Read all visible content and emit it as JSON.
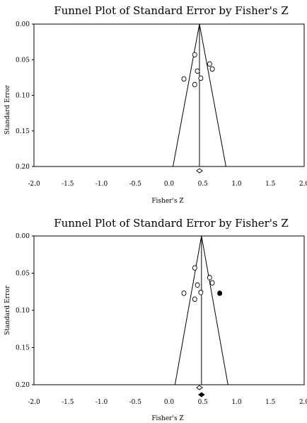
{
  "chart_data": [
    {
      "type": "scatter",
      "title": "Funnel Plot of Standard Error by Fisher's Z",
      "xlabel": "Fisher's Z",
      "ylabel": "Standard Error",
      "xlim": [
        -2.0,
        2.0
      ],
      "ylim": [
        0.0,
        0.2
      ],
      "y_inverted": true,
      "x_ticks": [
        "-2.0",
        "-1.5",
        "-1.0",
        "-0.5",
        "0.0",
        "0.5",
        "1.0",
        "1.5",
        "2.0"
      ],
      "y_ticks": [
        "0.00",
        "0.05",
        "0.10",
        "0.15",
        "0.20"
      ],
      "summary_effect": 0.45,
      "series": [
        {
          "marker": "open-circle",
          "points": [
            {
              "x": 0.38,
              "y": 0.043
            },
            {
              "x": 0.6,
              "y": 0.056
            },
            {
              "x": 0.64,
              "y": 0.063
            },
            {
              "x": 0.42,
              "y": 0.066
            },
            {
              "x": 0.22,
              "y": 0.077
            },
            {
              "x": 0.47,
              "y": 0.076
            },
            {
              "x": 0.38,
              "y": 0.085
            }
          ]
        }
      ],
      "summary_diamonds": [
        {
          "x": 0.45,
          "style": "open"
        }
      ]
    },
    {
      "type": "scatter",
      "title": "Funnel Plot of Standard Error by Fisher's Z",
      "xlabel": "Fisher's Z",
      "ylabel": "Standard Error",
      "xlim": [
        -2.0,
        2.0
      ],
      "ylim": [
        0.0,
        0.2
      ],
      "y_inverted": true,
      "x_ticks": [
        "-2.0",
        "-1.5",
        "-1.0",
        "-0.5",
        "0.0",
        "0.5",
        "1.0",
        "1.5",
        "2.0"
      ],
      "y_ticks": [
        "0.00",
        "0.05",
        "0.10",
        "0.15",
        "0.20"
      ],
      "summary_effect": 0.48,
      "series": [
        {
          "marker": "open-circle",
          "points": [
            {
              "x": 0.38,
              "y": 0.043
            },
            {
              "x": 0.6,
              "y": 0.056
            },
            {
              "x": 0.64,
              "y": 0.063
            },
            {
              "x": 0.42,
              "y": 0.066
            },
            {
              "x": 0.22,
              "y": 0.077
            },
            {
              "x": 0.47,
              "y": 0.076
            },
            {
              "x": 0.38,
              "y": 0.085
            }
          ]
        },
        {
          "marker": "filled-circle",
          "points": [
            {
              "x": 0.75,
              "y": 0.077
            }
          ]
        }
      ],
      "summary_diamonds": [
        {
          "x": 0.45,
          "style": "open"
        },
        {
          "x": 0.48,
          "style": "filled"
        }
      ]
    }
  ]
}
